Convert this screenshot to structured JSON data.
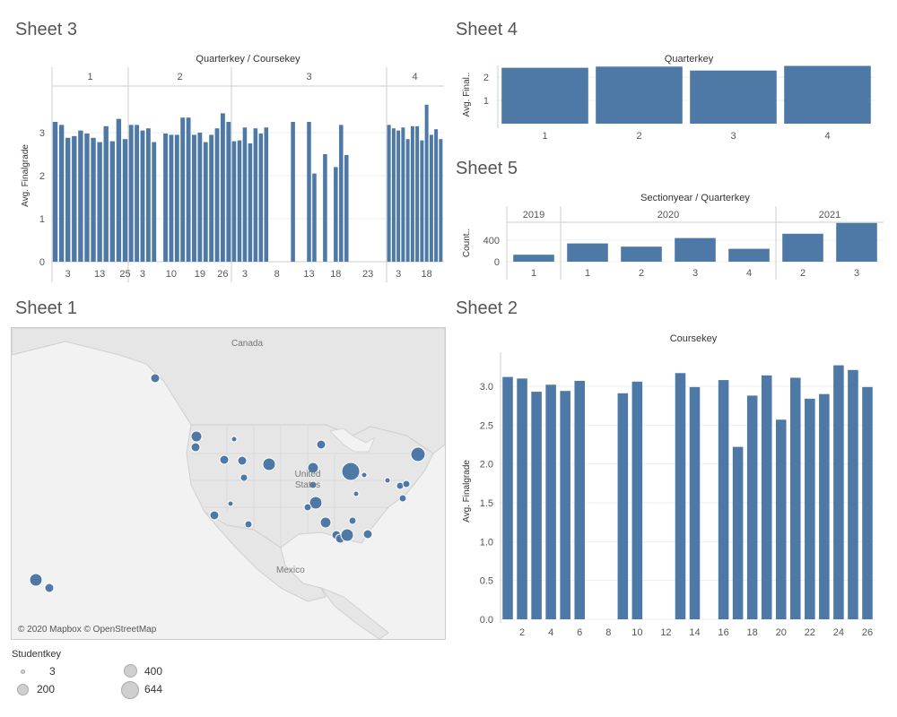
{
  "sheets": {
    "s3": "Sheet 3",
    "s4": "Sheet 4",
    "s5": "Sheet 5",
    "s1": "Sheet 1",
    "s2": "Sheet 2"
  },
  "colors": {
    "bar": "#4e79a7",
    "grid": "#eeeeee",
    "axis": "#cccccc",
    "land": "#e8e8e8",
    "water": "#f2f2f2"
  },
  "map": {
    "labels": {
      "canada": "Canada",
      "us": "United States",
      "mexico": "Mexico"
    },
    "attribution": "© 2020 Mapbox © OpenStreetMap"
  },
  "legend": {
    "title": "Studentkey",
    "items": [
      {
        "label": "3"
      },
      {
        "label": "400"
      },
      {
        "label": "200"
      },
      {
        "label": "644"
      }
    ]
  },
  "chart_data": [
    {
      "id": "sheet3",
      "type": "bar",
      "title": "Quarterkey / Coursekey",
      "ylabel": "Avg. Finalgrade",
      "ylim": [
        0,
        4
      ],
      "yticks": [
        0,
        1,
        2,
        3
      ],
      "groups": [
        {
          "label": "1",
          "values": [
            3.25,
            3.18,
            2.88,
            2.92,
            3.05,
            2.98,
            2.88,
            2.78,
            3.15,
            2.8,
            3.32,
            2.85
          ]
        },
        {
          "label": "2",
          "values": [
            3.18,
            3.18,
            3.05,
            3.1,
            2.78,
            null,
            2.98,
            2.95,
            2.95,
            3.35,
            3.35,
            2.95,
            3.0,
            2.78,
            2.95,
            3.1,
            3.45,
            3.25
          ]
        },
        {
          "label": "3",
          "values": [
            2.8,
            2.82,
            3.12,
            2.75,
            3.1,
            2.98,
            3.12,
            null,
            null,
            null,
            null,
            3.25,
            null,
            null,
            3.25,
            2.05,
            null,
            2.5,
            null,
            2.2,
            3.18,
            2.48,
            null,
            null,
            null,
            null,
            null,
            null,
            null
          ]
        },
        {
          "label": "4",
          "values": [
            3.18,
            3.1,
            3.05,
            3.12,
            2.85,
            3.15,
            3.15,
            2.82,
            3.65,
            2.95,
            3.08,
            2.85
          ]
        }
      ],
      "xticks": [
        {
          "group": 0,
          "index": 2,
          "label": "3"
        },
        {
          "group": 0,
          "index": 7,
          "label": "13"
        },
        {
          "group": 0,
          "index": 11,
          "label": "25"
        },
        {
          "group": 1,
          "index": 2,
          "label": "3"
        },
        {
          "group": 1,
          "index": 7,
          "label": "10"
        },
        {
          "group": 1,
          "index": 12,
          "label": "19"
        },
        {
          "group": 1,
          "index": 16,
          "label": "26"
        },
        {
          "group": 2,
          "index": 2,
          "label": "3"
        },
        {
          "group": 2,
          "index": 8,
          "label": "8"
        },
        {
          "group": 2,
          "index": 14,
          "label": "13"
        },
        {
          "group": 2,
          "index": 19,
          "label": "18"
        },
        {
          "group": 2,
          "index": 25,
          "label": "23"
        },
        {
          "group": 3,
          "index": 2,
          "label": "3"
        },
        {
          "group": 3,
          "index": 8,
          "label": "18"
        }
      ]
    },
    {
      "id": "sheet4",
      "type": "bar",
      "title": "Quarterkey",
      "ylabel": "Avg. Final..",
      "ylim": [
        0,
        2.5
      ],
      "yticks": [
        1,
        2
      ],
      "categories": [
        "1",
        "2",
        "3",
        "4"
      ],
      "values": [
        2.4,
        2.45,
        2.28,
        2.48
      ]
    },
    {
      "id": "sheet5",
      "type": "bar",
      "title": "Sectionyear / Quarterkey",
      "ylabel": "Count..",
      "ylim": [
        0,
        700
      ],
      "yticks": [
        0,
        400
      ],
      "groups": [
        {
          "label": "2019",
          "categories": [
            "1"
          ],
          "values": [
            130
          ]
        },
        {
          "label": "2020",
          "categories": [
            "1",
            "2",
            "3",
            "4"
          ],
          "values": [
            340,
            280,
            440,
            240
          ]
        },
        {
          "label": "2021",
          "categories": [
            "2",
            "3"
          ],
          "values": [
            520,
            720
          ]
        }
      ]
    },
    {
      "id": "sheet2",
      "type": "bar",
      "title": "Coursekey",
      "ylabel": "Avg. Finalgrade",
      "ylim": [
        0,
        3.3
      ],
      "yticks": [
        "0.0",
        "0.5",
        "1.0",
        "1.5",
        "2.0",
        "2.5",
        "3.0"
      ],
      "categories": [
        "1",
        "2",
        "3",
        "4",
        "5",
        "6",
        "7",
        "8",
        "9",
        "10",
        "11",
        "12",
        "13",
        "14",
        "15",
        "16",
        "17",
        "18",
        "19",
        "20",
        "21",
        "22",
        "23",
        "24",
        "25",
        "26"
      ],
      "values": [
        3.12,
        3.1,
        2.93,
        3.02,
        2.94,
        3.07,
        null,
        null,
        2.91,
        3.06,
        null,
        null,
        3.17,
        2.99,
        null,
        3.08,
        2.22,
        2.88,
        3.14,
        2.57,
        3.11,
        2.84,
        2.9,
        3.27,
        3.21,
        2.99
      ],
      "xticks": [
        "2",
        "4",
        "6",
        "8",
        "10",
        "12",
        "14",
        "16",
        "18",
        "20",
        "22",
        "24",
        "26"
      ]
    }
  ]
}
